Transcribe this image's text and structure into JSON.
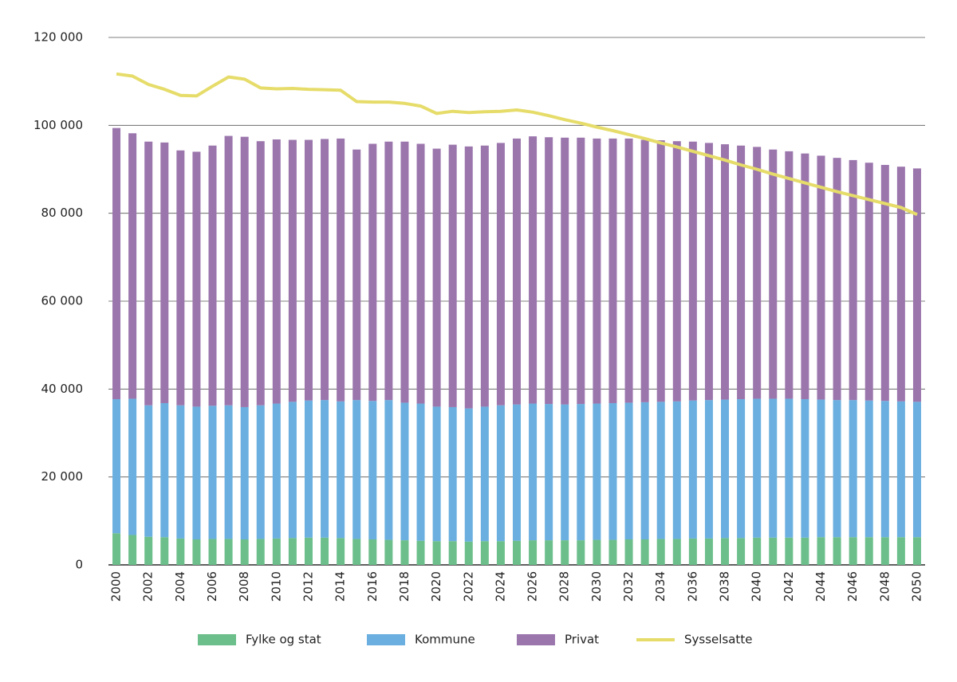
{
  "chart_data": {
    "type": "bar",
    "stacked": true,
    "legend": "bottom",
    "grid": true,
    "categories": [
      "2000",
      null,
      "2002",
      null,
      "2004",
      null,
      "2006",
      null,
      "2008",
      null,
      "2010",
      null,
      "2012",
      null,
      "2014",
      null,
      "2016",
      null,
      "2018",
      null,
      "2020",
      null,
      "2022",
      null,
      "2024",
      null,
      "2026",
      null,
      "2028",
      null,
      "2030",
      null,
      "2032",
      null,
      "2034",
      null,
      "2036",
      null,
      "2038",
      null,
      "2040",
      null,
      "2042",
      null,
      "2044",
      null,
      "2046",
      null,
      "2048",
      null,
      "2050"
    ],
    "ylim": [
      0,
      120000
    ],
    "yticks": [
      0,
      {
        "value": 20000,
        "label": "20 000"
      },
      {
        "value": 40000,
        "label": "40 000"
      },
      {
        "value": 60000,
        "label": "60 000"
      },
      {
        "value": 80000,
        "label": "80 000"
      },
      {
        "value": 100000,
        "label": "100 000"
      },
      {
        "value": 120000,
        "label": "120 000"
      }
    ],
    "series": [
      {
        "name": "Fylke og stat",
        "type": "bar",
        "color": "#6cbf8b",
        "values": [
          7200,
          6800,
          6400,
          6300,
          6000,
          5800,
          5900,
          5900,
          5800,
          5900,
          6000,
          6100,
          6200,
          6200,
          6100,
          5900,
          5800,
          5700,
          5600,
          5500,
          5400,
          5400,
          5300,
          5400,
          5400,
          5500,
          5600,
          5600,
          5600,
          5600,
          5700,
          5700,
          5800,
          5800,
          5900,
          5900,
          6000,
          6000,
          6100,
          6100,
          6200,
          6200,
          6200,
          6200,
          6300,
          6300,
          6300,
          6300,
          6300,
          6300,
          6300
        ]
      },
      {
        "name": "Kommune",
        "type": "bar",
        "color": "#6aafdf",
        "values": [
          30500,
          31000,
          29900,
          30500,
          30300,
          30200,
          30300,
          30400,
          30100,
          30400,
          30700,
          31000,
          31200,
          31300,
          31100,
          31600,
          31500,
          31800,
          31300,
          31200,
          30600,
          30500,
          30300,
          30600,
          30900,
          31000,
          31100,
          31000,
          30900,
          31000,
          31000,
          31100,
          31100,
          31200,
          31200,
          31300,
          31400,
          31500,
          31500,
          31600,
          31600,
          31600,
          31600,
          31500,
          31300,
          31200,
          31200,
          31100,
          31000,
          30900,
          30800
        ]
      },
      {
        "name": "Privat",
        "type": "bar",
        "color": "#9b76ad",
        "values": [
          61700,
          60400,
          60000,
          59300,
          58000,
          58000,
          59200,
          61300,
          61500,
          60100,
          60100,
          59600,
          59300,
          59400,
          59800,
          57000,
          58500,
          58800,
          59400,
          59100,
          58700,
          59700,
          59600,
          59400,
          59700,
          60500,
          60800,
          60700,
          60700,
          60600,
          60300,
          60200,
          60100,
          59700,
          59500,
          59200,
          58900,
          58500,
          58100,
          57700,
          57300,
          56700,
          56300,
          55900,
          55500,
          55100,
          54600,
          54100,
          53700,
          53400,
          53100
        ]
      },
      {
        "name": "Sysselsatte",
        "type": "line",
        "color": "#e6dc6a",
        "values": [
          111700,
          111200,
          109300,
          108200,
          106800,
          106700,
          108900,
          111000,
          110500,
          108500,
          108300,
          108400,
          108200,
          108100,
          108000,
          105400,
          105300,
          105300,
          105000,
          104400,
          102700,
          103200,
          102900,
          103100,
          103200,
          103500,
          103000,
          102200,
          101300,
          100500,
          99600,
          98800,
          97900,
          97000,
          96000,
          95100,
          94100,
          93100,
          92100,
          91000,
          90000,
          88900,
          87900,
          86900,
          85900,
          84900,
          84000,
          83100,
          82200,
          81300,
          79700
        ]
      }
    ]
  }
}
